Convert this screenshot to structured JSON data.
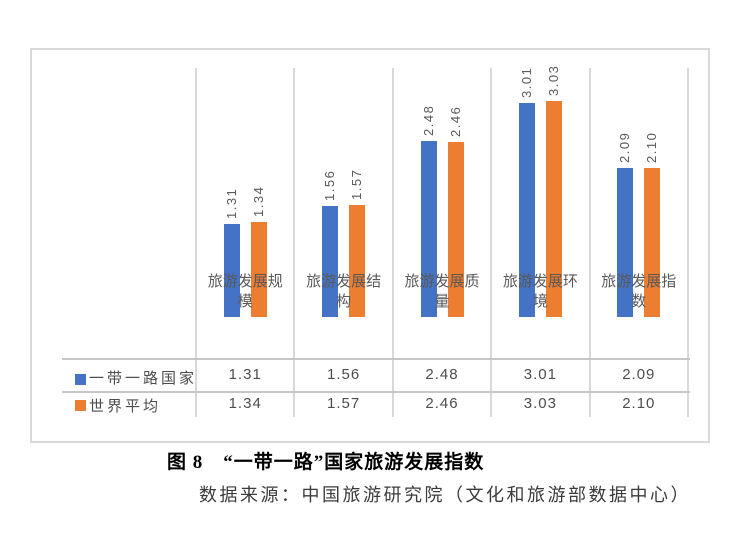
{
  "figure": {
    "caption": "图 8　“一带一路”国家旅游发展指数",
    "source_note": "数据来源：中国旅游研究院（文化和旅游部数据中心）"
  },
  "chart_data": {
    "type": "bar",
    "title": "图 8　“一带一路”国家旅游发展指数",
    "categories": [
      "旅游发展规模",
      "旅游发展结构",
      "旅游发展质量",
      "旅游发展环境",
      "旅游发展指数"
    ],
    "series": [
      {
        "name": "一带一路国家",
        "color": "#4472C4",
        "values": [
          1.31,
          1.56,
          2.48,
          3.01,
          2.09
        ],
        "labels": [
          "1.31",
          "1.56",
          "2.48",
          "3.01",
          "2.09"
        ]
      },
      {
        "name": "世界平均",
        "color": "#ED7D31",
        "values": [
          1.34,
          1.57,
          2.46,
          3.03,
          2.1
        ],
        "labels": [
          "1.34",
          "1.57",
          "2.46",
          "3.03",
          "2.10"
        ]
      }
    ],
    "ylim": [
      0,
      3.5
    ],
    "y_axis_visible": false,
    "data_labels": true,
    "data_label_rotation": 90,
    "legend_position": "data-table-left",
    "grid": "vertical-category-separators",
    "colors": {
      "separator": "#D9D9D9",
      "frame_border": "#D9D9D9",
      "table_line": "#C6C6C6",
      "label_text": "#595959",
      "table_text": "#4d4d4d"
    }
  }
}
